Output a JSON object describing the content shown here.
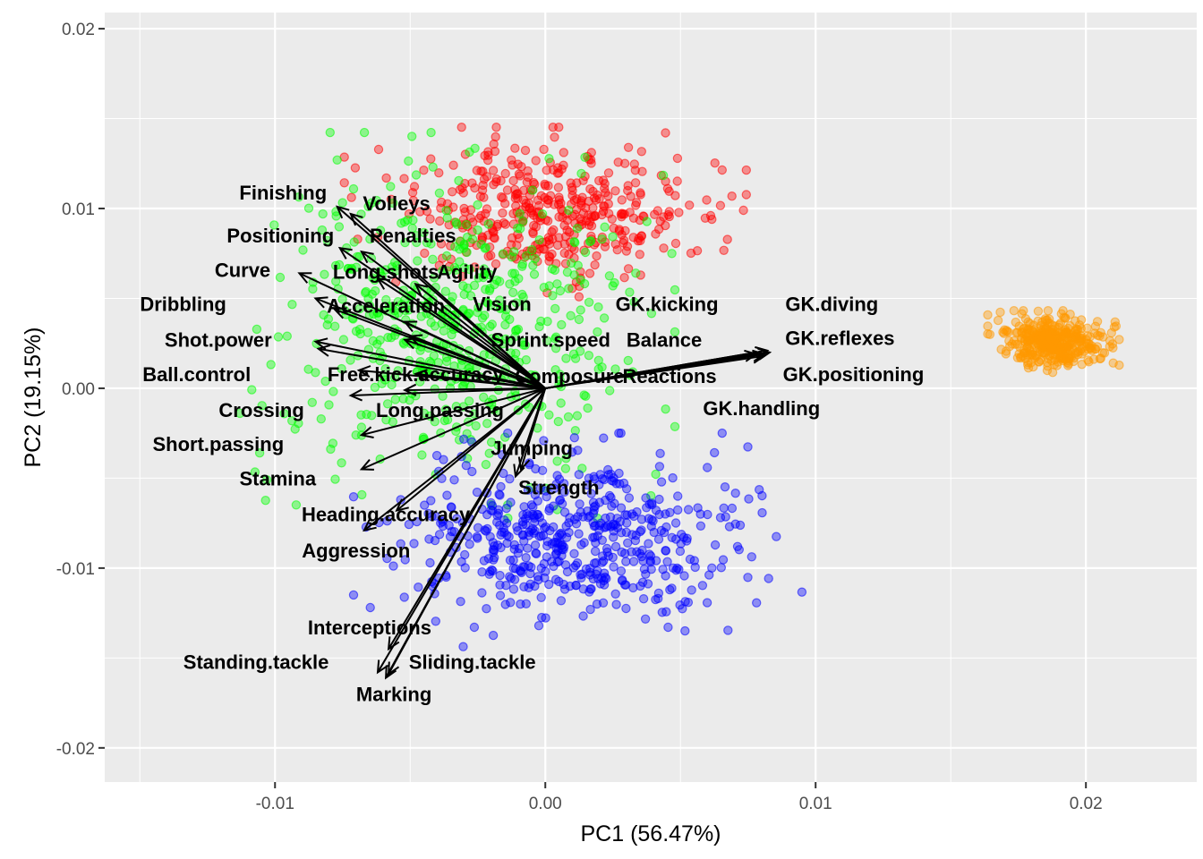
{
  "chart_data": {
    "type": "scatter",
    "subtype": "pca-biplot",
    "title": "",
    "xlabel": "PC1 (56.47%)",
    "ylabel": "PC2 (19.15%)",
    "xlim": [
      -0.0163,
      0.0241
    ],
    "ylim": [
      -0.0219,
      0.0209
    ],
    "x_ticks": [
      {
        "value": -0.01,
        "label": "-0.01"
      },
      {
        "value": 0.0,
        "label": "0.00"
      },
      {
        "value": 0.01,
        "label": "0.01"
      },
      {
        "value": 0.02,
        "label": "0.02"
      }
    ],
    "y_ticks": [
      {
        "value": -0.02,
        "label": "-0.02"
      },
      {
        "value": -0.01,
        "label": "-0.01"
      },
      {
        "value": 0.0,
        "label": "0.00"
      },
      {
        "value": 0.01,
        "label": "0.01"
      },
      {
        "value": 0.02,
        "label": "0.02"
      }
    ],
    "grid": true,
    "legend": "none",
    "series": [
      {
        "color": "#ff0000",
        "center": [
          0.0,
          0.0098
        ],
        "spread": [
          0.0052,
          0.0033
        ],
        "count": 420
      },
      {
        "color": "#00ff00",
        "center": [
          -0.0035,
          0.0035
        ],
        "spread": [
          0.0058,
          0.0075
        ],
        "count": 560
      },
      {
        "color": "#0000ff",
        "center": [
          0.0012,
          -0.0085
        ],
        "spread": [
          0.0058,
          0.0042
        ],
        "count": 540
      },
      {
        "color": "#ff9900",
        "center": [
          0.0188,
          0.0026
        ],
        "spread": [
          0.0017,
          0.0012
        ],
        "count": 380
      }
    ],
    "loadings": [
      {
        "name": "Finishing",
        "x": -0.0077,
        "y": 0.0101
      },
      {
        "name": "Volleys",
        "x": -0.0072,
        "y": 0.0097
      },
      {
        "name": "Positioning",
        "x": -0.0076,
        "y": 0.0078
      },
      {
        "name": "Penalties",
        "x": -0.0068,
        "y": 0.0076
      },
      {
        "name": "Curve",
        "x": -0.0091,
        "y": 0.0064
      },
      {
        "name": "Long.shots",
        "x": -0.0062,
        "y": 0.0061
      },
      {
        "name": "Agility",
        "x": -0.0048,
        "y": 0.0058
      },
      {
        "name": "Dribbling",
        "x": -0.0085,
        "y": 0.005
      },
      {
        "name": "Acceleration",
        "x": -0.0078,
        "y": 0.0044
      },
      {
        "name": "Vision",
        "x": -0.0052,
        "y": 0.0037
      },
      {
        "name": "Shot.power",
        "x": -0.0085,
        "y": 0.0026
      },
      {
        "name": "Sprint.speed",
        "x": -0.0052,
        "y": 0.0027
      },
      {
        "name": "Balance",
        "x": -0.005,
        "y": 0.0029
      },
      {
        "name": "Ball.control",
        "x": -0.0084,
        "y": 0.0022
      },
      {
        "name": "Free.kick.accuracy",
        "x": -0.0069,
        "y": 0.001
      },
      {
        "name": "Composure",
        "x": -0.0048,
        "y": 0.0008
      },
      {
        "name": "Reactions",
        "x": 0.0078,
        "y": 0.0019
      },
      {
        "name": "Crossing",
        "x": -0.0072,
        "y": -0.0004
      },
      {
        "name": "Long.passing",
        "x": -0.0052,
        "y": -0.0001
      },
      {
        "name": "Short.passing",
        "x": -0.0068,
        "y": -0.0026
      },
      {
        "name": "Jumping",
        "x": -0.0009,
        "y": -0.0045
      },
      {
        "name": "Stamina",
        "x": -0.0068,
        "y": -0.0045
      },
      {
        "name": "Strength",
        "x": -0.0011,
        "y": -0.0049
      },
      {
        "name": "Heading.accuracy",
        "x": -0.0055,
        "y": -0.0068
      },
      {
        "name": "Aggression",
        "x": -0.0067,
        "y": -0.0079
      },
      {
        "name": "Interceptions",
        "x": -0.0058,
        "y": -0.0145
      },
      {
        "name": "Standing.tackle",
        "x": -0.0062,
        "y": -0.0158
      },
      {
        "name": "Sliding.tackle",
        "x": -0.0058,
        "y": -0.0159
      },
      {
        "name": "Marking",
        "x": -0.0059,
        "y": -0.0161
      },
      {
        "name": "GK.kicking",
        "x": 0.0081,
        "y": 0.0018
      },
      {
        "name": "GK.diving",
        "x": 0.0082,
        "y": 0.0021
      },
      {
        "name": "GK.reflexes",
        "x": 0.0083,
        "y": 0.002
      },
      {
        "name": "GK.positioning",
        "x": 0.0081,
        "y": 0.0019
      },
      {
        "name": "GK.handling",
        "x": 0.0082,
        "y": 0.0021
      }
    ],
    "loading_labels": [
      {
        "text": "Finishing",
        "x": -0.0097,
        "y": 0.0109
      },
      {
        "text": "Volleys",
        "x": -0.0055,
        "y": 0.0103
      },
      {
        "text": "Positioning",
        "x": -0.0098,
        "y": 0.0085
      },
      {
        "text": "Penalties",
        "x": -0.0049,
        "y": 0.0085
      },
      {
        "text": "Curve",
        "x": -0.0112,
        "y": 0.0066
      },
      {
        "text": "Long.shots",
        "x": -0.0059,
        "y": 0.0065
      },
      {
        "text": "Agility",
        "x": -0.0029,
        "y": 0.0065
      },
      {
        "text": "Dribbling",
        "x": -0.0134,
        "y": 0.0047
      },
      {
        "text": "Acceleration",
        "x": -0.0059,
        "y": 0.0046
      },
      {
        "text": "Vision",
        "x": -0.0016,
        "y": 0.0047
      },
      {
        "text": "Shot.power",
        "x": -0.0121,
        "y": 0.0027
      },
      {
        "text": "Sprint.speed",
        "x": 0.0002,
        "y": 0.0027
      },
      {
        "text": "Balance",
        "x": 0.0044,
        "y": 0.0027
      },
      {
        "text": "Ball.control",
        "x": -0.0129,
        "y": 0.0008
      },
      {
        "text": "Free.kick.accuracy",
        "x": -0.0048,
        "y": 0.0008
      },
      {
        "text": "Composure",
        "x": 0.0009,
        "y": 0.0007
      },
      {
        "text": "Reactions",
        "x": 0.0046,
        "y": 0.0007
      },
      {
        "text": "Crossing",
        "x": -0.0105,
        "y": -0.0012
      },
      {
        "text": "Long.passing",
        "x": -0.0039,
        "y": -0.0012
      },
      {
        "text": "Short.passing",
        "x": -0.0121,
        "y": -0.0031
      },
      {
        "text": "Jumping",
        "x": -0.0005,
        "y": -0.0033
      },
      {
        "text": "Stamina",
        "x": -0.0099,
        "y": -0.005
      },
      {
        "text": "Strength",
        "x": 0.0005,
        "y": -0.0055
      },
      {
        "text": "Heading.accuracy",
        "x": -0.0059,
        "y": -0.007
      },
      {
        "text": "Aggression",
        "x": -0.007,
        "y": -0.009
      },
      {
        "text": "Interceptions",
        "x": -0.0065,
        "y": -0.0133
      },
      {
        "text": "Standing.tackle",
        "x": -0.0107,
        "y": -0.0152
      },
      {
        "text": "Sliding.tackle",
        "x": -0.0027,
        "y": -0.0152
      },
      {
        "text": "Marking",
        "x": -0.0056,
        "y": -0.017
      },
      {
        "text": "GK.kicking",
        "x": 0.0045,
        "y": 0.0047
      },
      {
        "text": "GK.diving",
        "x": 0.0106,
        "y": 0.0047
      },
      {
        "text": "GK.reflexes",
        "x": 0.0109,
        "y": 0.0028
      },
      {
        "text": "GK.positioning",
        "x": 0.0114,
        "y": 0.0008
      },
      {
        "text": "GK.handling",
        "x": 0.008,
        "y": -0.0011
      }
    ]
  }
}
